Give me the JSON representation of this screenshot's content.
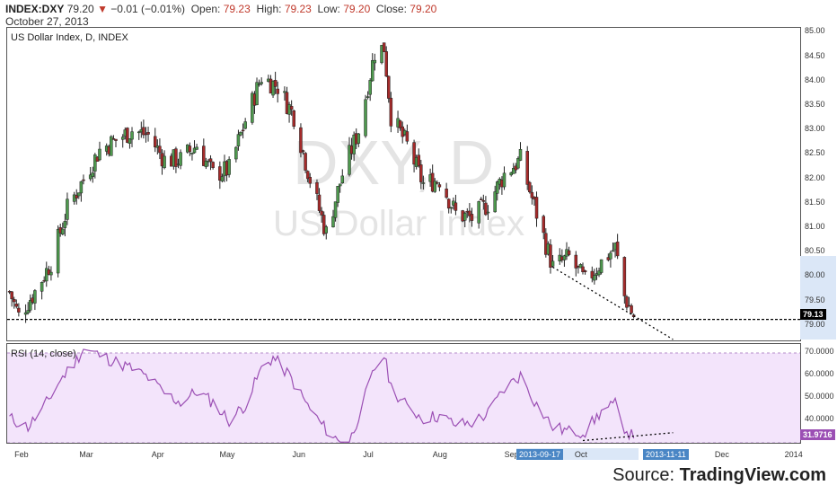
{
  "header": {
    "symbol": "INDEX:DXY",
    "last": "79.20",
    "change_arrow": "▼",
    "change": "−0.01 (−0.01%)",
    "open_label": "Open:",
    "open": "79.23",
    "high_label": "High:",
    "high": "79.23",
    "low_label": "Low:",
    "low": "79.20",
    "close_label": "Close:",
    "close": "79.20",
    "date": "October 27, 2013"
  },
  "main_pane": {
    "title": "US Dollar Index, D, INDEX",
    "watermark_symbol": "DXY, D",
    "watermark_name": "US Dollar Index",
    "price_tag": "79.13",
    "y_ticks": [
      "85.00",
      "84.50",
      "84.00",
      "83.50",
      "83.00",
      "82.50",
      "82.00",
      "81.50",
      "81.00",
      "80.50",
      "80.00",
      "79.50",
      "79.00"
    ]
  },
  "rsi_pane": {
    "title": "RSI (14, close)",
    "value_tag": "31.9716",
    "y_ticks": [
      "70.0000",
      "60.0000",
      "50.0000",
      "40.0000"
    ]
  },
  "x_axis": {
    "labels": [
      "Feb",
      "Mar",
      "Apr",
      "May",
      "Jun",
      "Jul",
      "Aug",
      "Sep",
      "Oct",
      "Dec",
      "2014"
    ],
    "range_start": "2013-09-17",
    "range_end": "2013-11-11"
  },
  "source": {
    "prefix": "Source: ",
    "brand": "TradingView.com"
  },
  "colors": {
    "up": "#4e9a4e",
    "down": "#a52a2a",
    "rsi_line": "#9b4fb4",
    "rsi_band": "#f3e4fb",
    "price_tag": "#000000",
    "rsi_tag": "#9b4fb4",
    "axis_highlight": "#dbe7f7"
  },
  "chart_data": [
    {
      "type": "candlestick",
      "title": "US Dollar Index, D, INDEX",
      "ylim": [
        78.7,
        85.1
      ],
      "x_range": [
        "2013-01-27",
        "2014-01-05"
      ],
      "close_path": [
        {
          "date": "2013-01-28",
          "close": 79.7
        },
        {
          "date": "2013-02-01",
          "close": 79.2
        },
        {
          "date": "2013-02-08",
          "close": 79.7
        },
        {
          "date": "2013-02-15",
          "close": 80.3
        },
        {
          "date": "2013-02-22",
          "close": 81.4
        },
        {
          "date": "2013-03-01",
          "close": 82.0
        },
        {
          "date": "2013-03-08",
          "close": 82.6
        },
        {
          "date": "2013-03-15",
          "close": 82.8
        },
        {
          "date": "2013-03-22",
          "close": 83.0
        },
        {
          "date": "2013-03-29",
          "close": 82.9
        },
        {
          "date": "2013-04-05",
          "close": 82.4
        },
        {
          "date": "2013-04-12",
          "close": 82.4
        },
        {
          "date": "2013-04-19",
          "close": 82.7
        },
        {
          "date": "2013-04-26",
          "close": 82.1
        },
        {
          "date": "2013-05-03",
          "close": 82.2
        },
        {
          "date": "2013-05-10",
          "close": 83.2
        },
        {
          "date": "2013-05-17",
          "close": 84.1
        },
        {
          "date": "2013-05-24",
          "close": 83.9
        },
        {
          "date": "2013-05-31",
          "close": 83.3
        },
        {
          "date": "2013-06-07",
          "close": 82.0
        },
        {
          "date": "2013-06-14",
          "close": 80.9
        },
        {
          "date": "2013-06-21",
          "close": 82.1
        },
        {
          "date": "2013-06-28",
          "close": 83.0
        },
        {
          "date": "2013-07-05",
          "close": 84.6
        },
        {
          "date": "2013-07-09",
          "close": 84.7
        },
        {
          "date": "2013-07-12",
          "close": 83.3
        },
        {
          "date": "2013-07-19",
          "close": 82.7
        },
        {
          "date": "2013-07-26",
          "close": 81.9
        },
        {
          "date": "2013-08-02",
          "close": 82.0
        },
        {
          "date": "2013-08-09",
          "close": 81.3
        },
        {
          "date": "2013-08-16",
          "close": 81.2
        },
        {
          "date": "2013-08-23",
          "close": 81.5
        },
        {
          "date": "2013-08-30",
          "close": 82.1
        },
        {
          "date": "2013-09-06",
          "close": 82.4
        },
        {
          "date": "2013-09-13",
          "close": 81.3
        },
        {
          "date": "2013-09-20",
          "close": 80.2
        },
        {
          "date": "2013-09-27",
          "close": 80.4
        },
        {
          "date": "2013-10-04",
          "close": 79.9
        },
        {
          "date": "2013-10-11",
          "close": 80.3
        },
        {
          "date": "2013-10-17",
          "close": 80.6
        },
        {
          "date": "2013-10-21",
          "close": 79.6
        },
        {
          "date": "2013-10-25",
          "close": 79.2
        }
      ],
      "horizontal_line": 79.13
    },
    {
      "type": "line",
      "title": "RSI (14, close)",
      "ylim": [
        30,
        74
      ],
      "reference_lines": [
        70,
        30
      ],
      "series": [
        {
          "values": [
            {
              "date": "2013-01-28",
              "y": 41
            },
            {
              "date": "2013-02-05",
              "y": 37
            },
            {
              "date": "2013-02-12",
              "y": 46
            },
            {
              "date": "2013-02-19",
              "y": 58
            },
            {
              "date": "2013-02-26",
              "y": 67
            },
            {
              "date": "2013-03-01",
              "y": 72
            },
            {
              "date": "2013-03-08",
              "y": 69
            },
            {
              "date": "2013-03-15",
              "y": 66
            },
            {
              "date": "2013-03-22",
              "y": 63
            },
            {
              "date": "2013-03-29",
              "y": 59
            },
            {
              "date": "2013-04-05",
              "y": 52
            },
            {
              "date": "2013-04-12",
              "y": 48
            },
            {
              "date": "2013-04-19",
              "y": 53
            },
            {
              "date": "2013-04-26",
              "y": 48
            },
            {
              "date": "2013-05-03",
              "y": 40
            },
            {
              "date": "2013-05-10",
              "y": 47
            },
            {
              "date": "2013-05-17",
              "y": 63
            },
            {
              "date": "2013-05-22",
              "y": 68
            },
            {
              "date": "2013-05-29",
              "y": 60
            },
            {
              "date": "2013-06-05",
              "y": 48
            },
            {
              "date": "2013-06-12",
              "y": 38
            },
            {
              "date": "2013-06-19",
              "y": 31
            },
            {
              "date": "2013-06-24",
              "y": 30
            },
            {
              "date": "2013-07-01",
              "y": 51
            },
            {
              "date": "2013-07-05",
              "y": 63
            },
            {
              "date": "2013-07-09",
              "y": 69
            },
            {
              "date": "2013-07-12",
              "y": 55
            },
            {
              "date": "2013-07-19",
              "y": 46
            },
            {
              "date": "2013-07-26",
              "y": 41
            },
            {
              "date": "2013-08-02",
              "y": 42
            },
            {
              "date": "2013-08-09",
              "y": 38
            },
            {
              "date": "2013-08-16",
              "y": 39
            },
            {
              "date": "2013-08-23",
              "y": 43
            },
            {
              "date": "2013-08-30",
              "y": 54
            },
            {
              "date": "2013-09-06",
              "y": 60
            },
            {
              "date": "2013-09-13",
              "y": 47
            },
            {
              "date": "2013-09-20",
              "y": 37
            },
            {
              "date": "2013-09-27",
              "y": 35
            },
            {
              "date": "2013-10-04",
              "y": 35
            },
            {
              "date": "2013-10-11",
              "y": 44
            },
            {
              "date": "2013-10-17",
              "y": 47
            },
            {
              "date": "2013-10-21",
              "y": 37
            },
            {
              "date": "2013-10-25",
              "y": 32
            }
          ]
        }
      ]
    }
  ]
}
